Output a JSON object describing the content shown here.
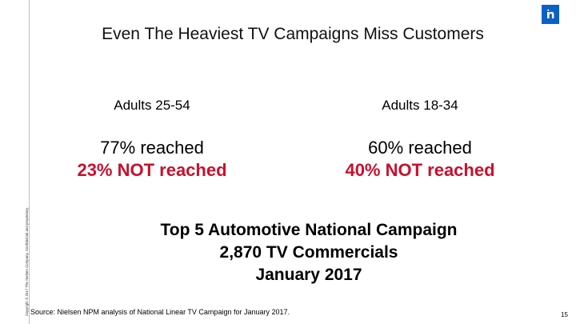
{
  "logo": {
    "icon": "brand-logo-icon",
    "color": "#0a62c9"
  },
  "side_copyright": "Copyright © 2017 The Nielsen Company. Confidential and proprietary.",
  "slide": {
    "title": "Even The Heaviest TV Campaigns Miss Customers",
    "columns": [
      {
        "head": "Adults 25-54",
        "reached": "77% reached",
        "not_reached": "23% NOT reached"
      },
      {
        "head": "Adults 18-34",
        "reached": "60% reached",
        "not_reached": "40% NOT reached"
      }
    ],
    "campaign": {
      "line1": "Top 5 Automotive National Campaign",
      "line2": "2,870 TV Commercials",
      "line3": "January 2017"
    },
    "source": "Source: Nielsen NPM analysis of National Linear TV Campaign for January 2017.",
    "page_number": "15"
  },
  "colors": {
    "accent_red": "#c8102e"
  }
}
